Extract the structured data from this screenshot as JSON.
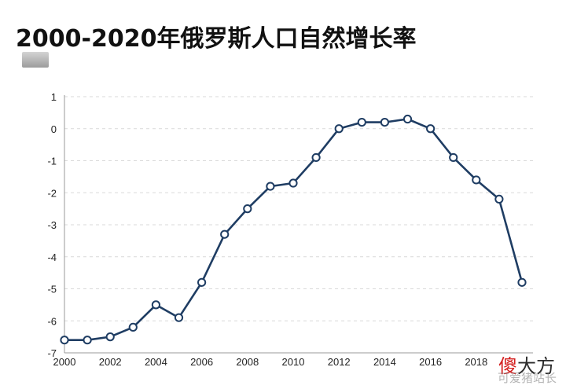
{
  "title": "2000-2020年俄罗斯人口自然增长率",
  "watermark": {
    "part1": "傻",
    "part2": "大方",
    "sub": "可爱猪站长"
  },
  "colors": {
    "line": "#1f3d63",
    "marker_fill": "#ffffff",
    "grid": "#d9d9d9",
    "axis": "#9a9a9a"
  },
  "chart_data": {
    "type": "line",
    "title": "2000-2020年俄罗斯人口自然增长率",
    "xlabel": "",
    "ylabel": "",
    "xlim": [
      2000,
      2020
    ],
    "ylim": [
      -7,
      1
    ],
    "xticks": [
      2000,
      2002,
      2004,
      2006,
      2008,
      2010,
      2012,
      2014,
      2016,
      2018
    ],
    "yticks": [
      1,
      0,
      -1,
      -2,
      -3,
      -4,
      -5,
      -6,
      -7
    ],
    "grid": "horizontal-dashed",
    "series": [
      {
        "x": [
          2000,
          2001,
          2002,
          2003,
          2004,
          2005,
          2006,
          2007,
          2008,
          2009,
          2010,
          2011,
          2012,
          2013,
          2014,
          2015,
          2016,
          2017,
          2018,
          2019,
          2020
        ],
        "values": [
          -6.6,
          -6.6,
          -6.5,
          -6.2,
          -5.5,
          -5.9,
          -4.8,
          -3.3,
          -2.5,
          -1.8,
          -1.7,
          -0.9,
          0.0,
          0.2,
          0.2,
          0.3,
          0.0,
          -0.9,
          -1.6,
          -2.2,
          -4.8
        ]
      }
    ]
  }
}
